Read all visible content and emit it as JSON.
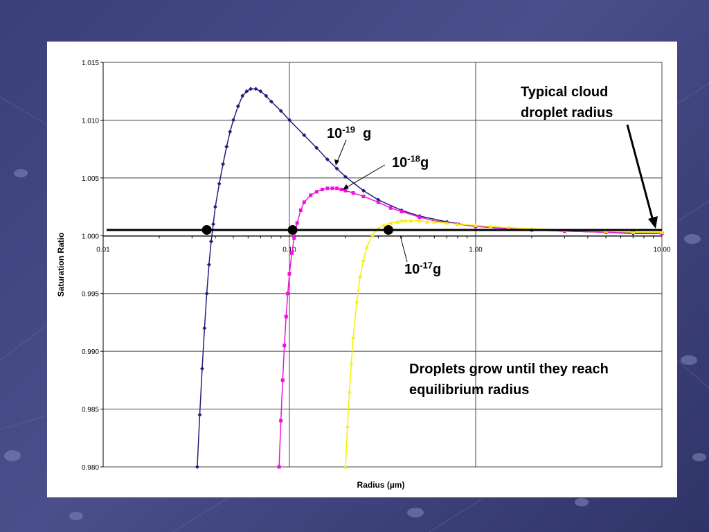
{
  "slide": {
    "background": "#3a3f7a",
    "annotations": {
      "typical_cloud": "Typical cloud droplet radius",
      "droplets_grow": "Droplets grow until they reach equilibrium radius",
      "label_1e19": {
        "base": "10",
        "exp": "-19",
        "unit": "  g"
      },
      "label_1e18": {
        "base": "10",
        "exp": "-18",
        "unit": "g"
      },
      "label_1e17": {
        "base": "10",
        "exp": "-17",
        "unit": "g"
      }
    }
  },
  "chart_data": {
    "type": "line",
    "title": "",
    "xlabel": "Radius (µm)",
    "ylabel": "Saturation Ratio",
    "xscale": "log",
    "xlim": [
      0.01,
      10
    ],
    "ylim": [
      0.98,
      1.015
    ],
    "x_ticks": [
      "0.01",
      "0.10",
      "1.00",
      "10.00"
    ],
    "y_ticks": [
      "0.980",
      "0.985",
      "0.990",
      "0.995",
      "1.000",
      "1.005",
      "1.010",
      "1.015"
    ],
    "grid": true,
    "legend": "none",
    "equilibrium_line": 1.0005,
    "series": [
      {
        "color": "#1f1f7a",
        "marker": "diamond",
        "x": [
          0.032,
          0.033,
          0.034,
          0.035,
          0.036,
          0.037,
          0.038,
          0.039,
          0.04,
          0.042,
          0.044,
          0.046,
          0.048,
          0.05,
          0.053,
          0.056,
          0.059,
          0.062,
          0.066,
          0.07,
          0.075,
          0.08,
          0.09,
          0.1,
          0.12,
          0.14,
          0.16,
          0.18,
          0.2,
          0.25,
          0.3,
          0.4,
          0.5,
          0.7,
          1.0,
          1.5,
          2.0,
          3.0,
          5.0,
          7.0,
          10.0
        ],
        "y": [
          0.98,
          0.9845,
          0.9885,
          0.992,
          0.995,
          0.9975,
          0.9995,
          1.001,
          1.0025,
          1.0045,
          1.0062,
          1.0077,
          1.009,
          1.01,
          1.0112,
          1.0121,
          1.0125,
          1.0127,
          1.0127,
          1.0125,
          1.0121,
          1.0116,
          1.0108,
          1.01,
          1.0087,
          1.0076,
          1.0066,
          1.0058,
          1.0051,
          1.0039,
          1.0031,
          1.0022,
          1.0017,
          1.0012,
          1.0008,
          1.0006,
          1.0005,
          1.0004,
          1.0003,
          1.0002,
          1.0002
        ]
      },
      {
        "color": "#ee11dd",
        "marker": "square",
        "x": [
          0.088,
          0.09,
          0.092,
          0.094,
          0.096,
          0.098,
          0.1,
          0.103,
          0.106,
          0.11,
          0.115,
          0.12,
          0.13,
          0.14,
          0.15,
          0.16,
          0.17,
          0.18,
          0.19,
          0.2,
          0.22,
          0.25,
          0.3,
          0.35,
          0.4,
          0.5,
          0.6,
          0.8,
          1.0,
          1.5,
          2.0,
          3.0,
          5.0,
          7.0,
          10.0
        ],
        "y": [
          0.98,
          0.984,
          0.9875,
          0.9905,
          0.993,
          0.995,
          0.9967,
          0.9985,
          0.9998,
          1.0011,
          1.0022,
          1.0029,
          1.0035,
          1.0038,
          1.004,
          1.0041,
          1.0041,
          1.0041,
          1.004,
          1.0039,
          1.0037,
          1.0034,
          1.0029,
          1.0024,
          1.0021,
          1.0016,
          1.0013,
          1.001,
          1.0008,
          1.0006,
          1.0005,
          1.0004,
          1.0003,
          1.0003,
          1.0002
        ]
      },
      {
        "color": "#f5f000",
        "marker": "triangle",
        "x": [
          0.2,
          0.205,
          0.21,
          0.215,
          0.22,
          0.23,
          0.24,
          0.25,
          0.26,
          0.28,
          0.3,
          0.32,
          0.35,
          0.38,
          0.4,
          0.42,
          0.45,
          0.5,
          0.55,
          0.6,
          0.7,
          0.8,
          1.0,
          1.2,
          1.5,
          2.0,
          3.0,
          5.0,
          7.0,
          10.0
        ],
        "y": [
          0.98,
          0.9835,
          0.9865,
          0.989,
          0.9912,
          0.9943,
          0.9965,
          0.9979,
          0.999,
          1.0001,
          1.0006,
          1.0009,
          1.0011,
          1.0012,
          1.0013,
          1.0013,
          1.0013,
          1.0013,
          1.0012,
          1.0012,
          1.0011,
          1.001,
          1.0009,
          1.0008,
          1.0007,
          1.0006,
          1.0005,
          1.0004,
          1.0003,
          1.0003
        ]
      }
    ],
    "equilibrium_points": [
      {
        "x": 0.036,
        "y": 1.0005
      },
      {
        "x": 0.104,
        "y": 1.0005
      },
      {
        "x": 0.34,
        "y": 1.0005
      }
    ]
  }
}
